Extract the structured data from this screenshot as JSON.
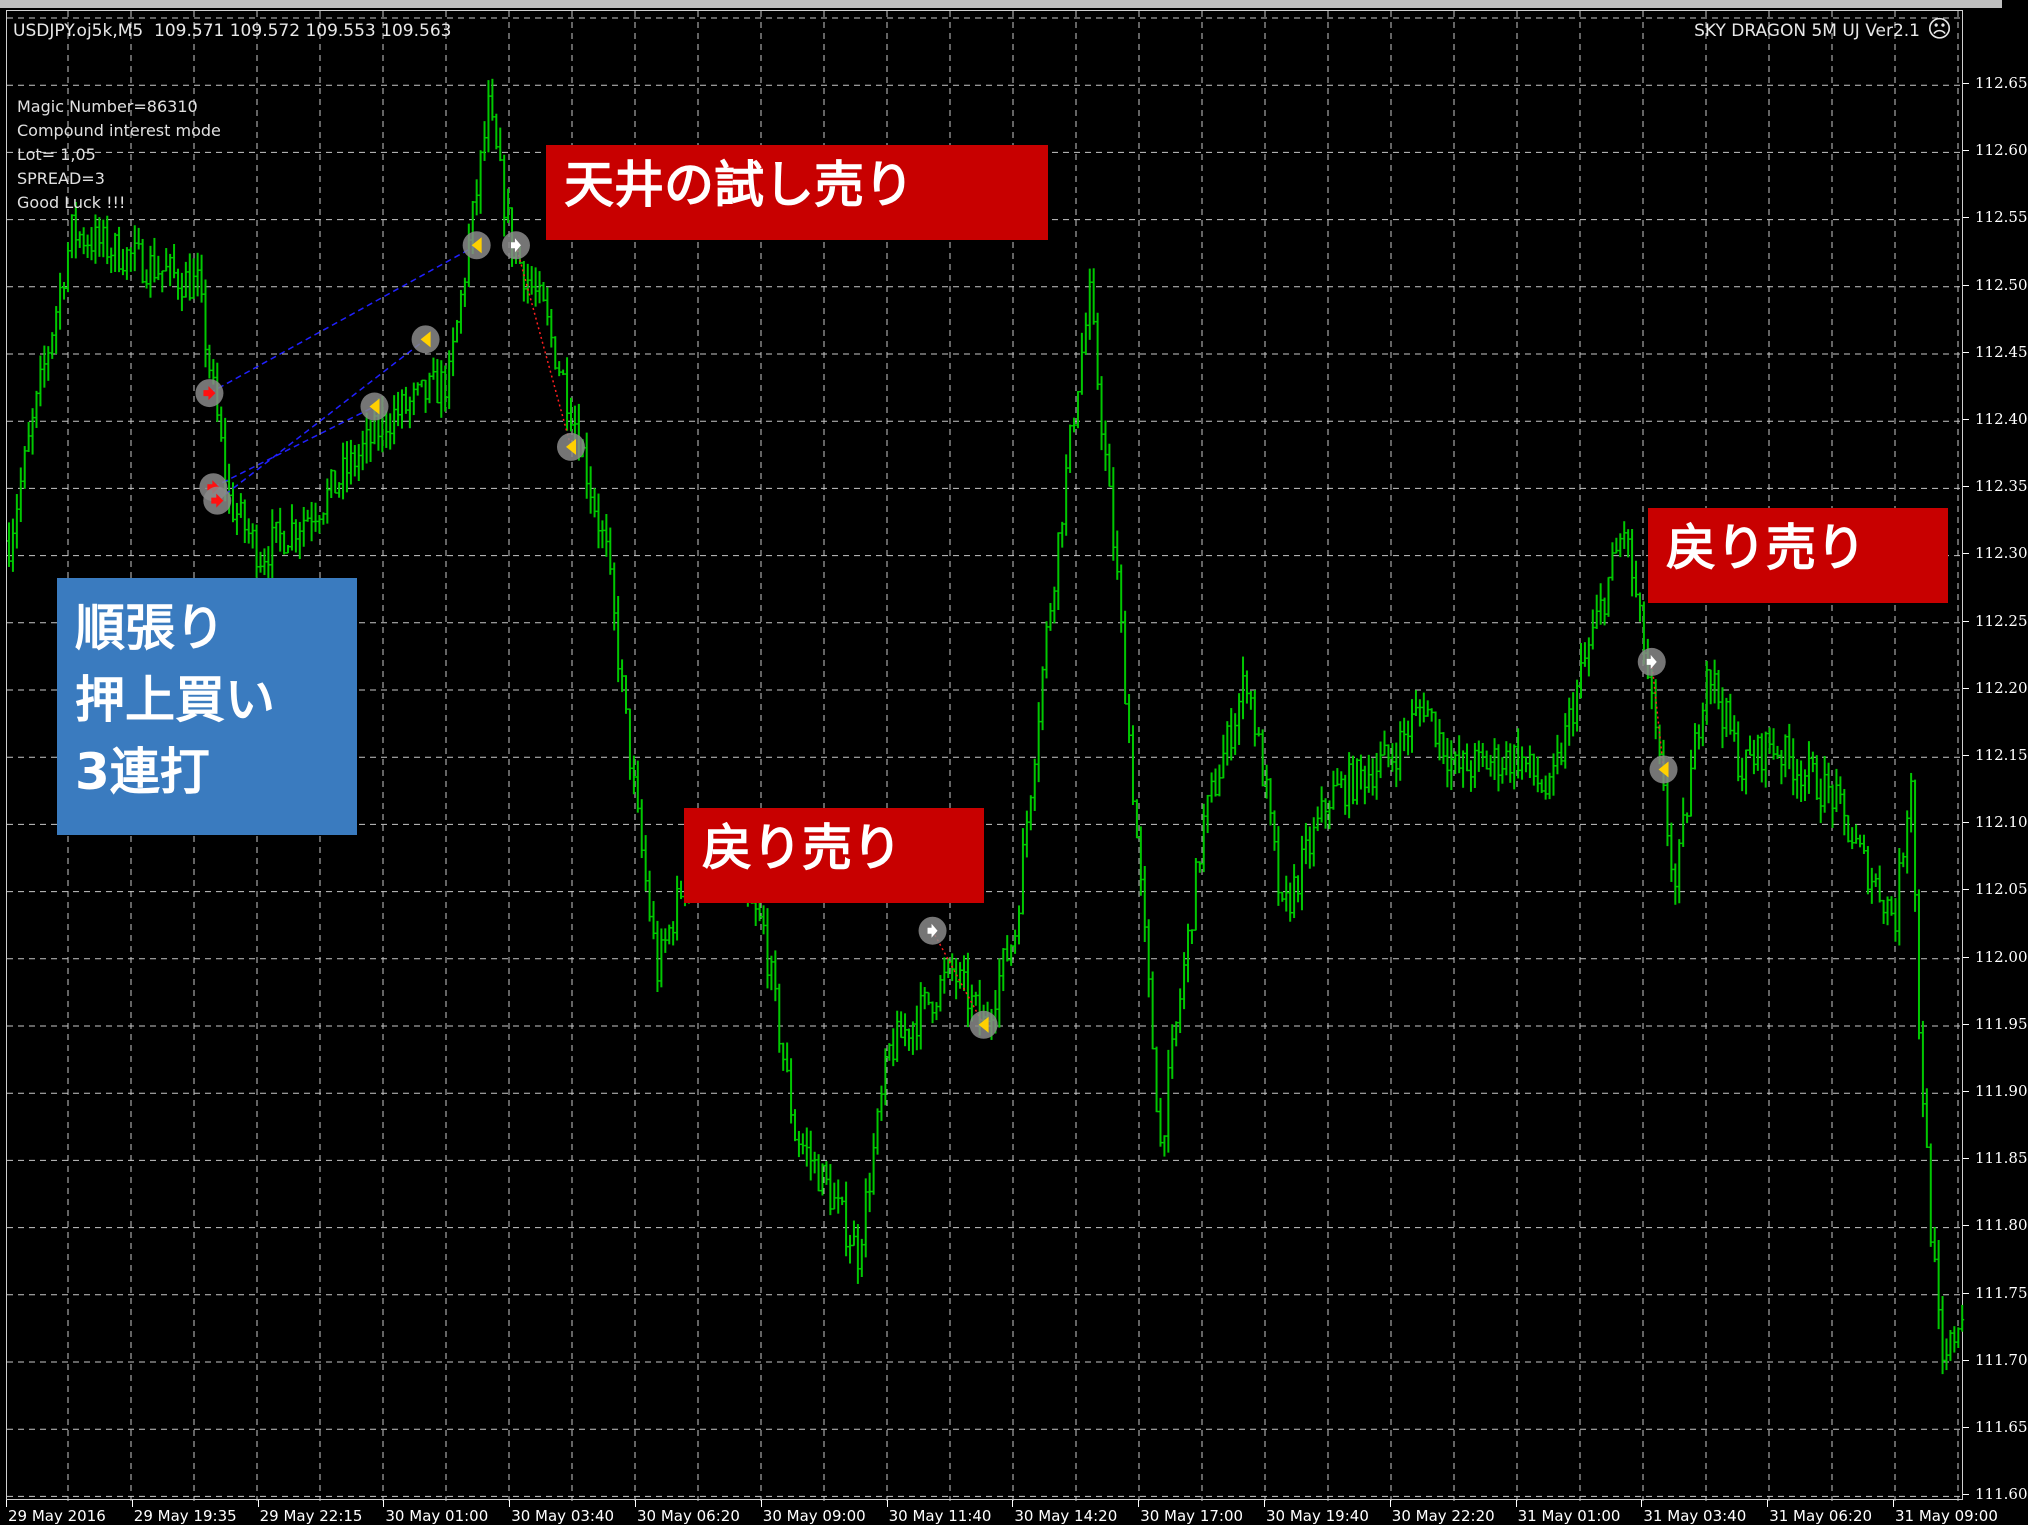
{
  "header": {
    "symbol_info": "USDJPY.oj5k,M5  109.571 109.572 109.553 109.563",
    "ea_name": "SKY DRAGON 5M UJ Ver2.1",
    "ea_status_icon": "sad-face-icon"
  },
  "info_panel": [
    "Magic Number=86310",
    "Compound interest mode",
    "Lot= 1,05",
    "SPREAD=3",
    "Good Luck !!!"
  ],
  "annotations": {
    "top_test_sell": "天井の試し売り",
    "trend_buy": [
      "順張り",
      "押上買い",
      "3連打"
    ],
    "pullback_sell_1": "戻り売り",
    "pullback_sell_2": "戻り売り"
  },
  "colors": {
    "background": "#000000",
    "bars": "#00c800",
    "grid": "#c8c8c8",
    "annotation_red": "#c80000",
    "annotation_blue": "#3a7bbf",
    "buy_line": "#2020ff",
    "sell_line": "#ff2020"
  },
  "chart_data": {
    "type": "bar",
    "series_kind": "ohlc-bars (approximate price path)",
    "grid": true,
    "y_tick_labels": [
      "112.65",
      "112.60",
      "112.55",
      "112.50",
      "112.45",
      "112.40",
      "112.35",
      "112.30",
      "112.25",
      "112.20",
      "112.15",
      "112.10",
      "112.05",
      "112.00",
      "111.95",
      "111.90",
      "111.85",
      "111.80",
      "111.75",
      "111.70",
      "111.65",
      "111.60"
    ],
    "x_tick_labels": [
      "29 May 2016",
      "29 May 19:35",
      "29 May 22:15",
      "30 May 01:00",
      "30 May 03:40",
      "30 May 06:20",
      "30 May 09:00",
      "30 May 11:40",
      "30 May 14:20",
      "30 May 17:00",
      "30 May 19:40",
      "30 May 22:20",
      "31 May 01:00",
      "31 May 03:40",
      "31 May 06:20",
      "31 May 09:00"
    ],
    "path": [
      [
        "29 May 16:55",
        112.31
      ],
      [
        "29 May 18:15",
        112.54
      ],
      [
        "29 May 19:35",
        112.52
      ],
      [
        "29 May 20:55",
        112.5
      ],
      [
        "29 May 21:35",
        112.34
      ],
      [
        "29 May 22:15",
        112.3
      ],
      [
        "29 May 23:35",
        112.34
      ],
      [
        "30 May 01:00",
        112.4
      ],
      [
        "30 May 02:20",
        112.43
      ],
      [
        "30 May 03:10",
        112.63
      ],
      [
        "30 May 03:40",
        112.53
      ],
      [
        "30 May 04:20",
        112.48
      ],
      [
        "30 May 05:00",
        112.4
      ],
      [
        "30 May 05:40",
        112.3
      ],
      [
        "30 May 06:20",
        112.1
      ],
      [
        "30 May 06:45",
        111.99
      ],
      [
        "30 May 07:40",
        112.1
      ],
      [
        "30 May 09:00",
        112.02
      ],
      [
        "30 May 09:40",
        111.87
      ],
      [
        "30 May 10:20",
        111.83
      ],
      [
        "30 May 11:00",
        111.78
      ],
      [
        "30 May 11:40",
        111.93
      ],
      [
        "30 May 13:00",
        111.99
      ],
      [
        "30 May 13:40",
        111.95
      ],
      [
        "30 May 14:20",
        112.02
      ],
      [
        "30 May 15:00",
        112.24
      ],
      [
        "30 May 15:40",
        112.43
      ],
      [
        "30 May 15:55",
        112.49
      ],
      [
        "30 May 16:30",
        112.28
      ],
      [
        "30 May 17:00",
        112.05
      ],
      [
        "30 May 17:25",
        111.86
      ],
      [
        "30 May 17:50",
        111.97
      ],
      [
        "30 May 18:20",
        112.1
      ],
      [
        "30 May 19:15",
        112.21
      ],
      [
        "30 May 19:40",
        112.12
      ],
      [
        "30 May 20:00",
        112.03
      ],
      [
        "30 May 21:00",
        112.12
      ],
      [
        "30 May 22:20",
        112.15
      ],
      [
        "30 May 23:00",
        112.19
      ],
      [
        "30 May 23:40",
        112.14
      ],
      [
        "31 May 01:00",
        112.15
      ],
      [
        "31 May 01:40",
        112.12
      ],
      [
        "31 May 02:20",
        112.21
      ],
      [
        "31 May 03:00",
        112.29
      ],
      [
        "31 May 03:15",
        112.32
      ],
      [
        "31 May 03:40",
        112.23
      ],
      [
        "31 May 04:20",
        112.05
      ],
      [
        "31 May 05:00",
        112.22
      ],
      [
        "31 May 05:45",
        112.14
      ],
      [
        "31 May 06:20",
        112.16
      ],
      [
        "31 May 07:40",
        112.12
      ],
      [
        "31 May 08:20",
        112.07
      ],
      [
        "31 May 09:00",
        112.03
      ],
      [
        "31 May 09:20",
        112.14
      ],
      [
        "31 May 09:30",
        111.95
      ],
      [
        "31 May 09:45",
        111.8
      ],
      [
        "31 May 10:00",
        111.69
      ],
      [
        "31 May 10:25",
        111.74
      ]
    ],
    "trades": [
      {
        "kind": "buy-entry",
        "time": "29 May 21:10",
        "price": 112.42
      },
      {
        "kind": "buy-entry",
        "time": "29 May 21:15",
        "price": 112.35
      },
      {
        "kind": "buy-entry",
        "time": "29 May 21:20",
        "price": 112.34
      },
      {
        "kind": "exit",
        "time": "30 May 00:40",
        "price": 112.41
      },
      {
        "kind": "exit",
        "time": "30 May 01:50",
        "price": 112.46
      },
      {
        "kind": "exit",
        "time": "30 May 02:55",
        "price": 112.53
      },
      {
        "kind": "sell-entry",
        "time": "30 May 03:45",
        "price": 112.53
      },
      {
        "kind": "exit",
        "time": "30 May 04:55",
        "price": 112.38
      },
      {
        "kind": "sell-entry",
        "time": "30 May 12:35",
        "price": 112.02
      },
      {
        "kind": "exit",
        "time": "30 May 13:40",
        "price": 111.95
      },
      {
        "kind": "sell-entry",
        "time": "31 May 03:50",
        "price": 112.22
      },
      {
        "kind": "exit",
        "time": "31 May 04:05",
        "price": 112.14
      }
    ],
    "trade_links": [
      [
        0,
        5,
        "buy"
      ],
      [
        1,
        3,
        "buy"
      ],
      [
        2,
        4,
        "buy"
      ],
      [
        6,
        7,
        "sell"
      ],
      [
        8,
        9,
        "sell"
      ],
      [
        10,
        11,
        "sell"
      ]
    ]
  }
}
